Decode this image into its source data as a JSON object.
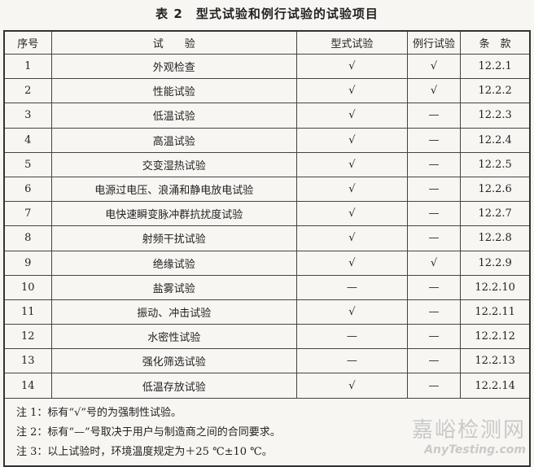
{
  "title": "表 2　型式试验和例行试验的试验项目",
  "headers": [
    "序号",
    "试　　验",
    "型式试验",
    "例行试验",
    "条　款"
  ],
  "rows": [
    [
      "1",
      "外观检查",
      "√",
      "√",
      "12.2.1"
    ],
    [
      "2",
      "性能试验",
      "√",
      "√",
      "12.2.2"
    ],
    [
      "3",
      "低温试验",
      "√",
      "—",
      "12.2.3"
    ],
    [
      "4",
      "高温试验",
      "√",
      "—",
      "12.2.4"
    ],
    [
      "5",
      "交变湿热试验",
      "√",
      "—",
      "12.2.5"
    ],
    [
      "6",
      "电源过电压、浪涌和静电放电试验",
      "√",
      "—",
      "12.2.6"
    ],
    [
      "7",
      "电快速瞬变脉冲群抗扰度试验",
      "√",
      "—",
      "12.2.7"
    ],
    [
      "8",
      "射频干扰试验",
      "√",
      "—",
      "12.2.8"
    ],
    [
      "9",
      "绝缘试验",
      "√",
      "√",
      "12.2.9"
    ],
    [
      "10",
      "盐雾试验",
      "—",
      "—",
      "12.2.10"
    ],
    [
      "11",
      "振动、冲击试验",
      "√",
      "—",
      "12.2.11"
    ],
    [
      "12",
      "水密性试验",
      "—",
      "—",
      "12.2.12"
    ],
    [
      "13",
      "强化筛选试验",
      "—",
      "—",
      "12.2.13"
    ],
    [
      "14",
      "低温存放试验",
      "√",
      "—",
      "12.2.14"
    ]
  ],
  "notes": [
    "注 1：标有“√”号的为强制性试验。",
    "注 2：标有“—”号取决于用户与制造商之间的合同要求。",
    "注 3：以上试验时，环境温度规定为＋25 ℃±10 ℃。"
  ],
  "watermark": {
    "cn": "嘉峪检测网",
    "en": "AnyTesting.com"
  }
}
